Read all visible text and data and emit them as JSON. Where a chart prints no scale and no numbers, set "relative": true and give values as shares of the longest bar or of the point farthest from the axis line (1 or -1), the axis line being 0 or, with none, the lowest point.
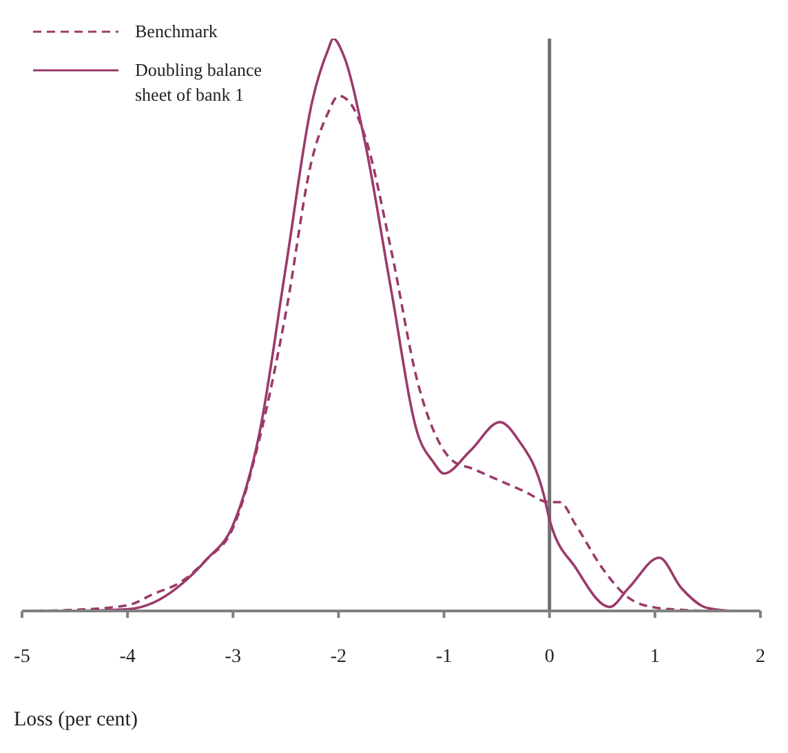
{
  "chart_data": {
    "type": "line",
    "xlabel": "Loss (per cent)",
    "relative": true,
    "xlim": [
      -5,
      2
    ],
    "xticks": [
      -5,
      -4,
      -3,
      -2,
      -1,
      0,
      1,
      2
    ],
    "legend": "top left",
    "grid": false,
    "ref_lines": [
      {
        "axis": "x",
        "value": 0,
        "color": "#707070"
      }
    ],
    "series": [
      {
        "name": "Benchmark",
        "color": "#9b3a6a",
        "line_style": "dashed",
        "x": [
          -5,
          -4.5,
          -4,
          -3.75,
          -3.5,
          -3.25,
          -3,
          -2.75,
          -2.5,
          -2.25,
          -2.1,
          -2,
          -1.9,
          -1.75,
          -1.5,
          -1.25,
          -1,
          -0.9,
          -0.75,
          -0.5,
          -0.25,
          0,
          0.1,
          0.25,
          0.5,
          0.75,
          1,
          1.25,
          1.5,
          2
        ],
        "values": [
          0,
          0.002,
          0.01,
          0.03,
          0.05,
          0.09,
          0.145,
          0.3,
          0.52,
          0.79,
          0.87,
          0.9,
          0.89,
          0.83,
          0.63,
          0.4,
          0.28,
          0.26,
          0.25,
          0.23,
          0.21,
          0.19,
          0.19,
          0.15,
          0.075,
          0.023,
          0.006,
          0.002,
          0,
          0
        ]
      },
      {
        "name": "Doubling balance sheet of bank 1",
        "color": "#9b3a6a",
        "line_style": "solid",
        "x": [
          -5,
          -4.5,
          -4,
          -3.75,
          -3.5,
          -3.25,
          -3,
          -2.75,
          -2.5,
          -2.25,
          -2.1,
          -2.05,
          -1.95,
          -1.75,
          -1.5,
          -1.25,
          -1.1,
          -1,
          -0.75,
          -0.47,
          -0.3,
          -0.05,
          0,
          0.25,
          0.57,
          0.75,
          1.04,
          1.25,
          1.5,
          1.75,
          2
        ],
        "values": [
          0,
          0,
          0.003,
          0.015,
          0.045,
          0.09,
          0.15,
          0.31,
          0.6,
          0.89,
          0.98,
          1,
          0.97,
          0.82,
          0.56,
          0.31,
          0.26,
          0.24,
          0.28,
          0.33,
          0.3,
          0.2,
          0.16,
          0.075,
          0.007,
          0.04,
          0.093,
          0.04,
          0.005,
          0,
          0
        ]
      }
    ]
  }
}
